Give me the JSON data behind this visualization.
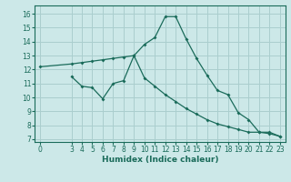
{
  "line1_x": [
    0,
    3,
    4,
    5,
    6,
    7,
    8,
    9,
    10,
    11,
    12,
    13,
    14,
    15,
    16,
    17,
    18,
    19,
    20,
    21,
    22,
    23
  ],
  "line1_y": [
    12.2,
    12.4,
    12.5,
    12.6,
    12.7,
    12.8,
    12.9,
    13.0,
    11.4,
    10.8,
    10.2,
    9.7,
    9.2,
    8.8,
    8.4,
    8.1,
    7.9,
    7.7,
    7.5,
    7.5,
    7.4,
    7.2
  ],
  "line2_x": [
    3,
    4,
    5,
    6,
    7,
    8,
    9,
    10,
    11,
    12,
    13,
    14,
    15,
    16,
    17,
    18,
    19,
    20,
    21,
    22,
    23
  ],
  "line2_y": [
    11.5,
    10.8,
    10.7,
    9.9,
    11.0,
    11.2,
    13.0,
    13.8,
    14.3,
    15.8,
    15.8,
    14.2,
    12.8,
    11.6,
    10.5,
    10.2,
    8.9,
    8.4,
    7.5,
    7.5,
    7.2
  ],
  "bg_color": "#cce8e8",
  "line_color": "#1a6b5a",
  "grid_color": "#aacece",
  "xlabel": "Humidex (Indice chaleur)",
  "ylim": [
    6.8,
    16.6
  ],
  "xlim": [
    -0.5,
    23.5
  ],
  "yticks": [
    7,
    8,
    9,
    10,
    11,
    12,
    13,
    14,
    15,
    16
  ],
  "xticks": [
    0,
    3,
    4,
    5,
    6,
    7,
    8,
    9,
    10,
    11,
    12,
    13,
    14,
    15,
    16,
    17,
    18,
    19,
    20,
    21,
    22,
    23
  ]
}
